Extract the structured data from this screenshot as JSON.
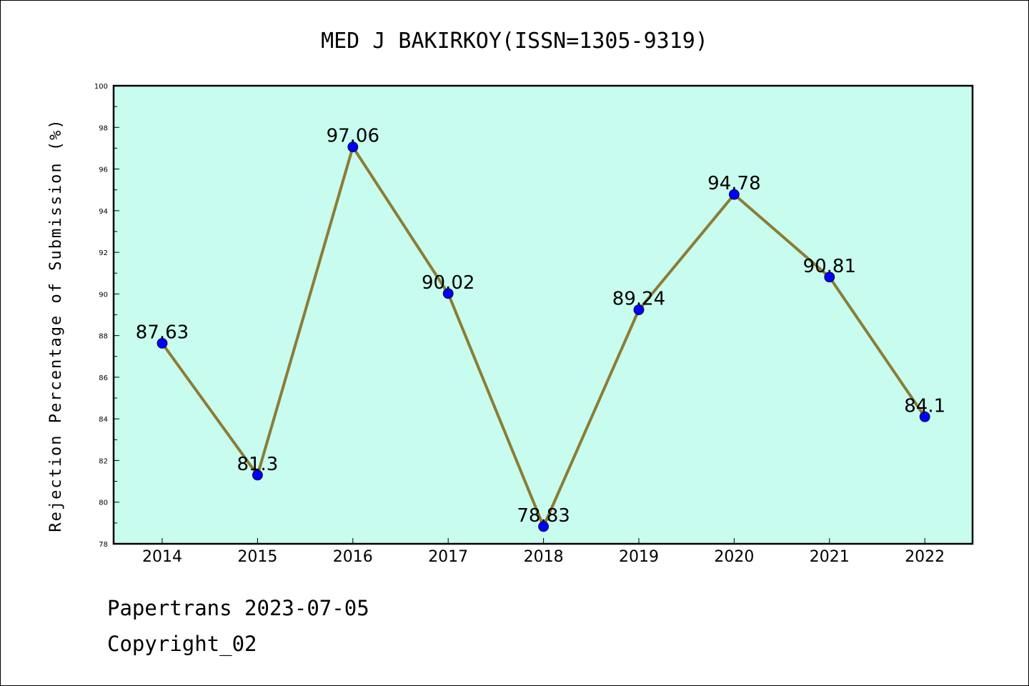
{
  "chart_data": {
    "type": "line",
    "title": "MED J BAKIRKOY(ISSN=1305-9319)",
    "xlabel": "",
    "ylabel": "Rejection Percentage of Submission (%)",
    "categories": [
      "2014",
      "2015",
      "2016",
      "2017",
      "2018",
      "2019",
      "2020",
      "2021",
      "2022"
    ],
    "series": [
      {
        "values": [
          87.63,
          81.3,
          97.06,
          90.02,
          78.83,
          89.24,
          94.78,
          90.81,
          84.1
        ],
        "labels": [
          "87.63",
          "81.3",
          "97.06",
          "90.02",
          "78.83",
          "89.24",
          "94.78",
          "90.81",
          "84.1"
        ]
      }
    ],
    "ylim": [
      78,
      100
    ],
    "yticks": [
      78,
      80,
      82,
      84,
      86,
      88,
      90,
      92,
      94,
      96,
      98,
      100
    ],
    "grid": false,
    "colors": {
      "plot_background": "#c8fcee",
      "line": "#8b7d36",
      "marker": "#0000ff"
    }
  },
  "footer": {
    "line1": "Papertrans 2023-07-05",
    "line2": "Copyright_02"
  }
}
